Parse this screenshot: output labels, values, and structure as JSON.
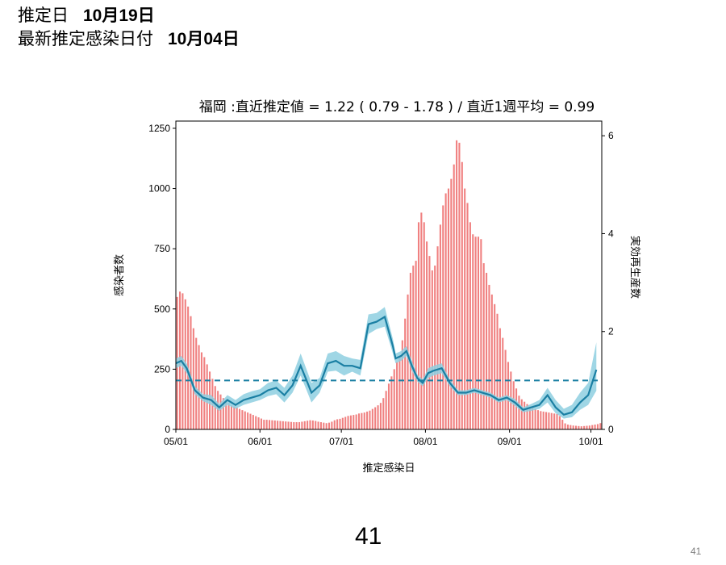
{
  "header": {
    "estimate_date_label": "推定日",
    "estimate_date_value": "10月19日",
    "latest_infection_label": "最新推定感染日付",
    "latest_infection_value": "10月04日"
  },
  "footer": {
    "page_number": "41",
    "slide_number": "41"
  },
  "colors": {
    "bar": "#f08080",
    "bar_edge": "#e05555",
    "line": "#1a7fa3",
    "band": "#8ecfe0",
    "ref": "#1a7fa3"
  },
  "chart_data": {
    "type": "bar",
    "title": "福岡 :直近推定値 = 1.22 ( 0.79 - 1.78 ) / 直近1週平均 = 0.99",
    "xlabel": "推定感染日",
    "ylabel_left": "感染者数",
    "ylabel_right": "実効再生産数",
    "x_start": "05/01",
    "x_ticks": [
      "05/01",
      "06/01",
      "07/01",
      "08/01",
      "09/01",
      "10/01"
    ],
    "x_tick_days": [
      0,
      31,
      61,
      92,
      123,
      153
    ],
    "ylim_left": [
      0,
      1280
    ],
    "yticks_left": [
      0,
      250,
      500,
      750,
      1000,
      1250
    ],
    "ylim_right": [
      0,
      6.3
    ],
    "yticks_right": [
      0,
      2,
      4,
      6
    ],
    "reference_line_right": 1.0,
    "infections_daily": [
      550,
      572,
      565,
      540,
      510,
      470,
      420,
      380,
      350,
      320,
      300,
      270,
      240,
      210,
      180,
      160,
      145,
      130,
      120,
      110,
      100,
      95,
      90,
      85,
      80,
      75,
      70,
      65,
      60,
      55,
      50,
      45,
      40,
      40,
      39,
      38,
      37,
      36,
      35,
      34,
      33,
      32,
      31,
      30,
      30,
      30,
      32,
      34,
      36,
      38,
      37,
      35,
      32,
      30,
      28,
      26,
      28,
      32,
      38,
      42,
      44,
      48,
      52,
      56,
      58,
      60,
      62,
      66,
      68,
      70,
      74,
      78,
      85,
      92,
      100,
      110,
      130,
      160,
      190,
      220,
      250,
      280,
      300,
      370,
      460,
      560,
      650,
      680,
      700,
      860,
      900,
      860,
      780,
      720,
      660,
      680,
      760,
      850,
      930,
      980,
      1000,
      1040,
      1100,
      1200,
      1190,
      1110,
      1000,
      940,
      860,
      810,
      800,
      800,
      790,
      690,
      650,
      600,
      560,
      520,
      480,
      420,
      380,
      330,
      280,
      240,
      200,
      170,
      140,
      125,
      115,
      105,
      95,
      90,
      85,
      80,
      76,
      74,
      72,
      70,
      68,
      66,
      64,
      55,
      40,
      25,
      20,
      18,
      16,
      15,
      14,
      13,
      14,
      15,
      16,
      18,
      20,
      22,
      26
    ],
    "rt": {
      "days": [
        0,
        2,
        4,
        7,
        10,
        13,
        16,
        19,
        22,
        25,
        28,
        31,
        34,
        37,
        40,
        43,
        46,
        50,
        53,
        56,
        59,
        62,
        65,
        68,
        71,
        74,
        77,
        80,
        81,
        83,
        85,
        87,
        89,
        91,
        93,
        95,
        98,
        101,
        104,
        107,
        110,
        113,
        116,
        119,
        122,
        125,
        128,
        131,
        134,
        137,
        140,
        143,
        146,
        149,
        152,
        155
      ],
      "mean": [
        1.35,
        1.4,
        1.25,
        0.8,
        0.65,
        0.6,
        0.45,
        0.6,
        0.5,
        0.6,
        0.65,
        0.7,
        0.8,
        0.85,
        0.7,
        0.9,
        1.3,
        0.75,
        0.9,
        1.35,
        1.4,
        1.3,
        1.3,
        1.25,
        2.15,
        2.2,
        2.3,
        1.7,
        1.45,
        1.5,
        1.6,
        1.3,
        1.05,
        0.95,
        1.15,
        1.2,
        1.25,
        0.95,
        0.75,
        0.75,
        0.8,
        0.75,
        0.7,
        0.6,
        0.65,
        0.55,
        0.4,
        0.45,
        0.5,
        0.7,
        0.45,
        0.3,
        0.35,
        0.55,
        0.7,
        1.22
      ],
      "lower": [
        1.25,
        1.3,
        1.15,
        0.72,
        0.58,
        0.5,
        0.38,
        0.5,
        0.42,
        0.5,
        0.55,
        0.6,
        0.68,
        0.72,
        0.55,
        0.75,
        1.1,
        0.55,
        0.75,
        1.18,
        1.2,
        1.1,
        1.18,
        1.1,
        1.95,
        2.05,
        2.1,
        1.55,
        1.35,
        1.4,
        1.5,
        1.2,
        0.98,
        0.88,
        1.05,
        1.1,
        1.15,
        0.88,
        0.7,
        0.7,
        0.75,
        0.7,
        0.65,
        0.55,
        0.6,
        0.48,
        0.35,
        0.38,
        0.42,
        0.55,
        0.33,
        0.22,
        0.25,
        0.4,
        0.5,
        0.79
      ],
      "upper": [
        1.45,
        1.5,
        1.35,
        0.88,
        0.72,
        0.7,
        0.52,
        0.7,
        0.6,
        0.72,
        0.78,
        0.82,
        0.95,
        1.0,
        0.85,
        1.1,
        1.55,
        0.95,
        1.05,
        1.55,
        1.6,
        1.5,
        1.45,
        1.42,
        2.35,
        2.38,
        2.5,
        1.85,
        1.55,
        1.6,
        1.7,
        1.4,
        1.12,
        1.02,
        1.25,
        1.3,
        1.35,
        1.02,
        0.8,
        0.8,
        0.85,
        0.8,
        0.75,
        0.65,
        0.7,
        0.62,
        0.45,
        0.52,
        0.6,
        0.85,
        0.6,
        0.42,
        0.5,
        0.75,
        0.95,
        1.78
      ]
    }
  }
}
